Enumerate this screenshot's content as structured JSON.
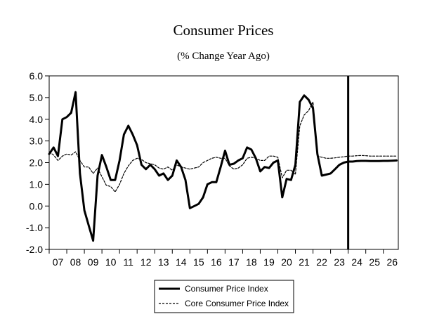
{
  "chart_data": {
    "type": "line",
    "title": "Consumer Prices",
    "subtitle": "(% Change Year Ago)",
    "xlabel": "",
    "ylabel": "",
    "ylim": [
      -2.0,
      6.0
    ],
    "xlim": [
      2007.0,
      2026.85
    ],
    "y_ticks": [
      "6.0",
      "5.0",
      "4.0",
      "3.0",
      "2.0",
      "1.0",
      "0.0",
      "-1.0",
      "-2.0"
    ],
    "x_tick_labels": [
      "07",
      "08",
      "09",
      "10",
      "11",
      "12",
      "13",
      "14",
      "15",
      "16",
      "17",
      "18",
      "19",
      "20",
      "21",
      "22",
      "23",
      "24",
      "25",
      "26"
    ],
    "forecast_marker_year": 2024.0,
    "grid": false,
    "legend_position": "bottom-center",
    "series": [
      {
        "name": "Consumer Price Index",
        "style": "solid",
        "x": [
          2007.0,
          2007.25,
          2007.5,
          2007.75,
          2008.0,
          2008.25,
          2008.5,
          2008.75,
          2009.0,
          2009.25,
          2009.5,
          2009.75,
          2010.0,
          2010.25,
          2010.5,
          2010.75,
          2011.0,
          2011.25,
          2011.5,
          2011.75,
          2012.0,
          2012.25,
          2012.5,
          2012.75,
          2013.0,
          2013.25,
          2013.5,
          2013.75,
          2014.0,
          2014.25,
          2014.5,
          2014.75,
          2015.0,
          2015.25,
          2015.5,
          2015.75,
          2016.0,
          2016.25,
          2016.5,
          2016.75,
          2017.0,
          2017.25,
          2017.5,
          2017.75,
          2018.0,
          2018.25,
          2018.5,
          2018.75,
          2019.0,
          2019.25,
          2019.5,
          2019.75,
          2020.0,
          2020.25,
          2020.5,
          2020.75,
          2021.0,
          2021.25,
          2021.5,
          2021.75,
          2022.0,
          2022.25,
          2022.5,
          2022.75,
          2023.0,
          2023.25,
          2023.5,
          2023.75,
          2024.0,
          2024.25,
          2024.5,
          2024.75,
          2025.0,
          2025.25,
          2025.5,
          2025.75,
          2026.0,
          2026.25,
          2026.5,
          2026.75
        ],
        "values": [
          2.4,
          2.7,
          2.3,
          4.0,
          4.1,
          4.3,
          5.25,
          1.5,
          -0.2,
          -0.9,
          -1.6,
          1.4,
          2.35,
          1.8,
          1.2,
          1.2,
          2.1,
          3.3,
          3.7,
          3.3,
          2.8,
          1.9,
          1.7,
          1.9,
          1.7,
          1.4,
          1.5,
          1.2,
          1.4,
          2.1,
          1.8,
          1.2,
          -0.1,
          0.0,
          0.1,
          0.4,
          1.0,
          1.1,
          1.1,
          1.8,
          2.55,
          1.9,
          1.95,
          2.1,
          2.2,
          2.7,
          2.6,
          2.2,
          1.6,
          1.8,
          1.75,
          2.0,
          2.1,
          0.4,
          1.25,
          1.2,
          1.9,
          4.8,
          5.1,
          4.9,
          4.5,
          2.4,
          1.4,
          1.45,
          1.5,
          1.7,
          1.9,
          2.0,
          2.05,
          2.05,
          2.07,
          2.08,
          2.08,
          2.07,
          2.07,
          2.07,
          2.08,
          2.08,
          2.09,
          2.1
        ]
      },
      {
        "name": "Core Consumer Price Index",
        "style": "dashed",
        "x": [
          2007.0,
          2007.25,
          2007.5,
          2007.75,
          2008.0,
          2008.25,
          2008.5,
          2008.75,
          2009.0,
          2009.25,
          2009.5,
          2009.75,
          2010.0,
          2010.25,
          2010.5,
          2010.75,
          2011.0,
          2011.25,
          2011.5,
          2011.75,
          2012.0,
          2012.25,
          2012.5,
          2012.75,
          2013.0,
          2013.25,
          2013.5,
          2013.75,
          2014.0,
          2014.25,
          2014.5,
          2014.75,
          2015.0,
          2015.25,
          2015.5,
          2015.75,
          2016.0,
          2016.25,
          2016.5,
          2016.75,
          2017.0,
          2017.25,
          2017.5,
          2017.75,
          2018.0,
          2018.25,
          2018.5,
          2018.75,
          2019.0,
          2019.25,
          2019.5,
          2019.75,
          2020.0,
          2020.25,
          2020.5,
          2020.75,
          2021.0,
          2021.25,
          2021.5,
          2021.75,
          2022.0,
          2022.25,
          2022.5,
          2022.75,
          2023.0,
          2023.25,
          2023.5,
          2023.75,
          2024.0,
          2024.25,
          2024.5,
          2024.75,
          2025.0,
          2025.25,
          2025.5,
          2025.75,
          2026.0,
          2026.25,
          2026.5,
          2026.75
        ],
        "values": [
          2.5,
          2.35,
          2.1,
          2.3,
          2.4,
          2.35,
          2.5,
          2.1,
          1.8,
          1.8,
          1.5,
          1.75,
          1.35,
          0.95,
          0.9,
          0.65,
          1.0,
          1.5,
          1.85,
          2.1,
          2.2,
          2.15,
          2.0,
          1.95,
          1.9,
          1.75,
          1.7,
          1.8,
          1.65,
          1.9,
          1.8,
          1.75,
          1.7,
          1.75,
          1.8,
          2.0,
          2.1,
          2.2,
          2.25,
          2.2,
          2.2,
          1.85,
          1.7,
          1.75,
          1.9,
          2.2,
          2.25,
          2.2,
          2.1,
          2.1,
          2.3,
          2.3,
          2.25,
          1.3,
          1.65,
          1.65,
          1.45,
          3.7,
          4.2,
          4.4,
          4.8,
          2.3,
          2.25,
          2.2,
          2.2,
          2.22,
          2.25,
          2.27,
          2.3,
          2.3,
          2.32,
          2.33,
          2.32,
          2.3,
          2.3,
          2.3,
          2.3,
          2.3,
          2.3,
          2.3
        ]
      }
    ]
  }
}
